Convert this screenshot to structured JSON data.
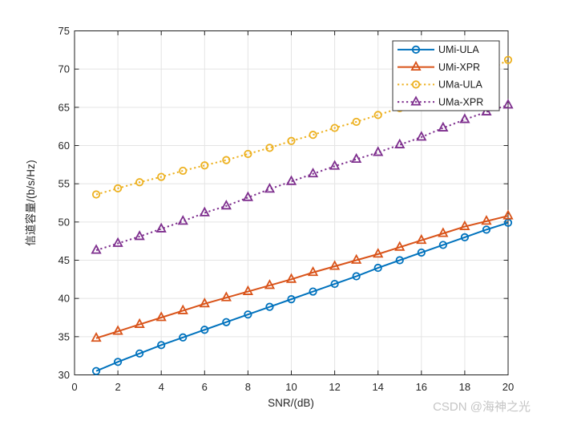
{
  "watermark": {
    "text": "CSDN @海神之光",
    "color": "#c5c5c5"
  },
  "axis_color": "#262626",
  "grid_color": "#e4e4e4",
  "legend": {
    "position": "top-right",
    "border_color": "#333333",
    "background": "#ffffff"
  },
  "chart_data": {
    "type": "line",
    "title": "",
    "xlabel": "SNR/(dB)",
    "ylabel": "信道容量/(b/s/Hz)",
    "xlim": [
      0,
      20
    ],
    "ylim": [
      30,
      75
    ],
    "xticks": [
      0,
      2,
      4,
      6,
      8,
      10,
      12,
      14,
      16,
      18,
      20
    ],
    "yticks": [
      30,
      35,
      40,
      45,
      50,
      55,
      60,
      65,
      70,
      75
    ],
    "grid": true,
    "legend_position": "top-right",
    "x": [
      1,
      2,
      3,
      4,
      5,
      6,
      7,
      8,
      9,
      10,
      11,
      12,
      13,
      14,
      15,
      16,
      17,
      18,
      19,
      20
    ],
    "series": [
      {
        "name": "UMi-ULA",
        "color": "#0072BD",
        "line": "solid",
        "marker": "circle",
        "values": [
          30.5,
          31.7,
          32.8,
          33.9,
          34.9,
          35.9,
          36.9,
          37.9,
          38.9,
          39.9,
          40.9,
          41.9,
          42.9,
          44.0,
          45.0,
          46.0,
          47.0,
          48.0,
          49.0,
          49.9
        ]
      },
      {
        "name": "UMi-XPR",
        "color": "#D95319",
        "line": "solid",
        "marker": "triangle",
        "values": [
          34.8,
          35.7,
          36.6,
          37.5,
          38.4,
          39.3,
          40.1,
          40.9,
          41.7,
          42.5,
          43.4,
          44.2,
          45.0,
          45.8,
          46.7,
          47.6,
          48.5,
          49.4,
          50.1,
          50.8
        ]
      },
      {
        "name": "UMa-ULA",
        "color": "#EDB120",
        "line": "dotted",
        "marker": "circle",
        "values": [
          53.6,
          54.4,
          55.2,
          55.9,
          56.7,
          57.4,
          58.1,
          58.9,
          59.7,
          60.6,
          61.4,
          62.3,
          63.1,
          64.0,
          64.9,
          65.9,
          67.0,
          68.2,
          69.7,
          71.2
        ]
      },
      {
        "name": "UMa-XPR",
        "color": "#7E2F8E",
        "line": "dotted",
        "marker": "triangle",
        "values": [
          46.3,
          47.2,
          48.1,
          49.1,
          50.1,
          51.2,
          52.1,
          53.2,
          54.3,
          55.3,
          56.3,
          57.3,
          58.2,
          59.1,
          60.1,
          61.1,
          62.3,
          63.4,
          64.4,
          65.3
        ]
      }
    ]
  }
}
